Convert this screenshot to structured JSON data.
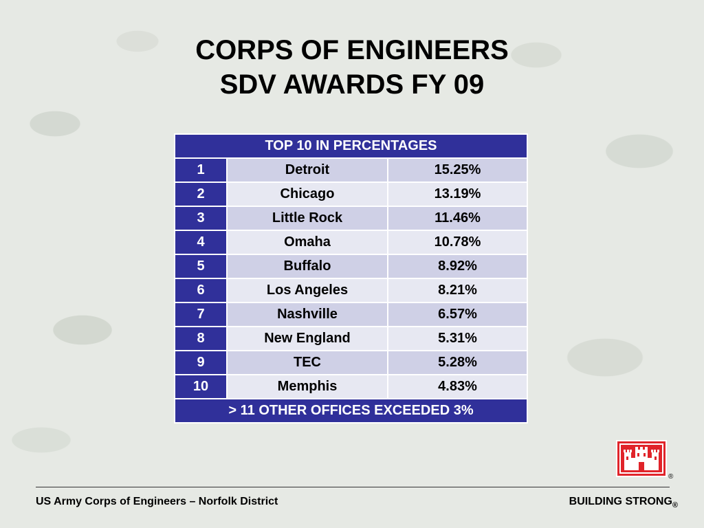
{
  "title": {
    "line1": "CORPS OF ENGINEERS",
    "line2": "SDV AWARDS FY 09"
  },
  "table": {
    "header": "TOP 10 IN PERCENTAGES",
    "rows": [
      {
        "rank": "1",
        "office": "Detroit",
        "percent": "15.25%"
      },
      {
        "rank": "2",
        "office": "Chicago",
        "percent": "13.19%"
      },
      {
        "rank": "3",
        "office": "Little Rock",
        "percent": "11.46%"
      },
      {
        "rank": "4",
        "office": "Omaha",
        "percent": "10.78%"
      },
      {
        "rank": "5",
        "office": "Buffalo",
        "percent": "8.92%"
      },
      {
        "rank": "6",
        "office": "Los Angeles",
        "percent": "8.21%"
      },
      {
        "rank": "7",
        "office": "Nashville",
        "percent": "6.57%"
      },
      {
        "rank": "8",
        "office": "New England",
        "percent": "5.31%"
      },
      {
        "rank": "9",
        "office": "TEC",
        "percent": "5.28%"
      },
      {
        "rank": "10",
        "office": "Memphis",
        "percent": "4.83%"
      }
    ],
    "footer": "> 11 OTHER OFFICES EXCEEDED 3%"
  },
  "logo": {
    "icon": "castle-icon",
    "registered": "®"
  },
  "footer": {
    "left": "US Army Corps of Engineers – Norfolk District",
    "right": "BUILDING STRONG",
    "registered": "®"
  },
  "colors": {
    "table_header": "#30309a",
    "row_dark": "#cfd0e6",
    "row_light": "#e7e8f2",
    "logo_red": "#e0242a"
  }
}
